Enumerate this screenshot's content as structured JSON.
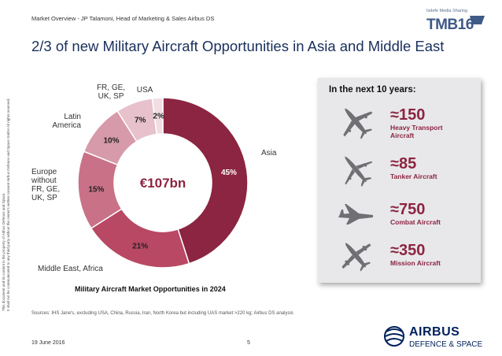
{
  "header": {
    "text": "Market Overview - JP Talamoni, Head of Marketing & Sales Airbus DS",
    "title": "2/3 of new Military Aircraft Opportunities in Asia and Middle East"
  },
  "logo_badge": {
    "tagline": "Isdefe Media Sharing",
    "mark": "TMB16"
  },
  "confidentiality": {
    "line1": "This document and its content is the property of Airbus Defence and Space.",
    "line2": "It shall not be communicated to any third party without the owner's written consent  Airbus Defence and Space GmbH  All rights reserved."
  },
  "chart_data": {
    "type": "pie",
    "title": "Military Aircraft Market Opportunities in 2024",
    "center_label": "€107bn",
    "categories": [
      "Asia",
      "Middle East, Africa",
      "Europe without FR, GE, UK, SP",
      "Latin America",
      "FR, GE, UK, SP",
      "USA"
    ],
    "values": [
      45,
      21,
      15,
      10,
      7,
      2
    ],
    "value_labels": [
      "45%",
      "21%",
      "15%",
      "10%",
      "7%",
      "2%"
    ],
    "colors": [
      "#8c2541",
      "#b84864",
      "#c97287",
      "#d79aaa",
      "#e7c1cb",
      "#f1dde3"
    ],
    "label_text_colors": [
      "#ffffff",
      "#222222",
      "#222222",
      "#222222",
      "#222222",
      "#222222"
    ],
    "category_lines": [
      [
        "Asia"
      ],
      [
        "Middle East, Africa"
      ],
      [
        "Europe",
        "without",
        "FR, GE,",
        "UK, SP"
      ],
      [
        "Latin",
        "America"
      ],
      [
        "FR, GE,",
        "UK, SP"
      ],
      [
        "USA"
      ]
    ],
    "unit": "%"
  },
  "panel": {
    "title": "In the next 10 years:",
    "items": [
      {
        "value": "≈150",
        "label_lines": [
          "Heavy Transport",
          "Aircraft"
        ],
        "icon": "transport-aircraft-icon"
      },
      {
        "value": "≈85",
        "label_lines": [
          "Tanker Aircraft"
        ],
        "icon": "tanker-aircraft-icon"
      },
      {
        "value": "≈750",
        "label_lines": [
          "Combat Aircraft"
        ],
        "icon": "combat-aircraft-icon"
      },
      {
        "value": "≈350",
        "label_lines": [
          "Mission Aircraft"
        ],
        "icon": "mission-aircraft-icon"
      }
    ]
  },
  "sources": "Sources:  IHS Jane's, excluding USA, China, Russia, Iran, North Korea but including UAS market >220 kg; Airbus DS analysis",
  "footer": {
    "date": "19 June 2016",
    "page": "5",
    "brand": "AIRBUS",
    "division": "DEFENCE & SPACE"
  },
  "colors": {
    "brand": "#8c2541",
    "title": "#1a2f5c",
    "panel_bg": "#e8e8ea",
    "airbus_blue": "#00205b"
  }
}
